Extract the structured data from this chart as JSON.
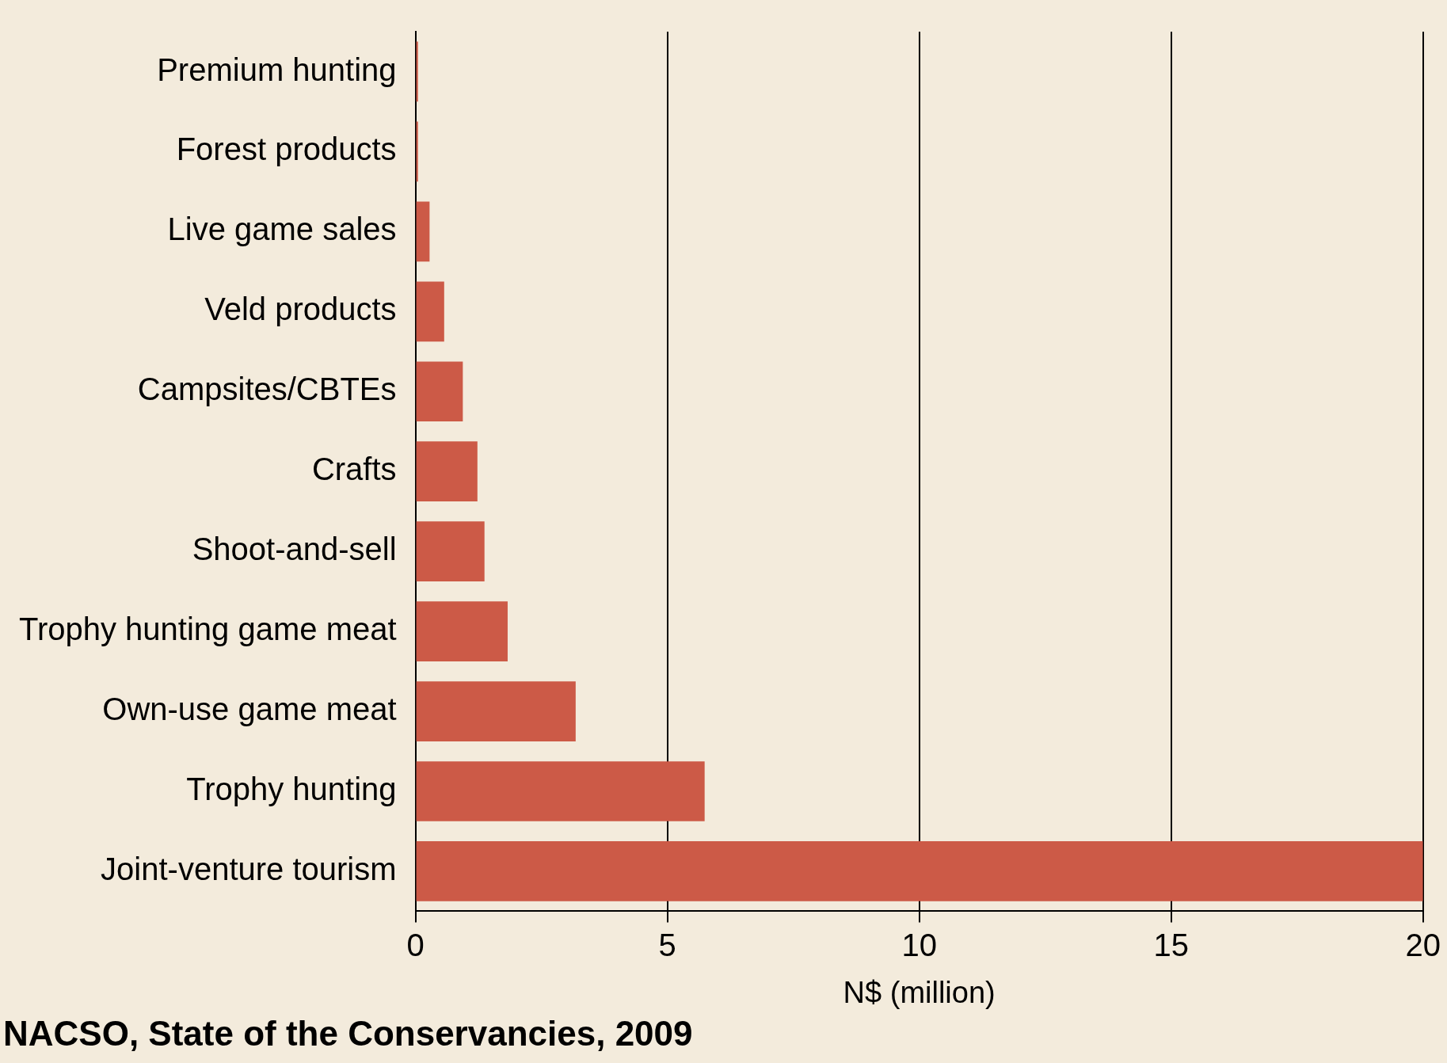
{
  "chart_data": {
    "type": "bar",
    "orientation": "horizontal",
    "xlabel": "N$ (million)",
    "categories": [
      "Premium hunting",
      "Forest products",
      "Live game sales",
      "Veld products",
      "Campsites/CBTEs",
      "Crafts",
      "Shoot-and-sell",
      "Trophy hunting game meat",
      "Own-use game meat",
      "Trophy hunting",
      "Joint-venture tourism"
    ],
    "values": [
      0.05,
      0.05,
      0.28,
      0.57,
      0.94,
      1.23,
      1.37,
      1.83,
      3.18,
      5.74,
      20
    ],
    "color": "#cc5a47",
    "xlim": [
      0,
      20
    ],
    "xticks": [
      0,
      5,
      10,
      15,
      20
    ],
    "grid": "x",
    "legend": false,
    "annotations": [
      "NACSO, State of the Conservancies, 2009"
    ]
  }
}
